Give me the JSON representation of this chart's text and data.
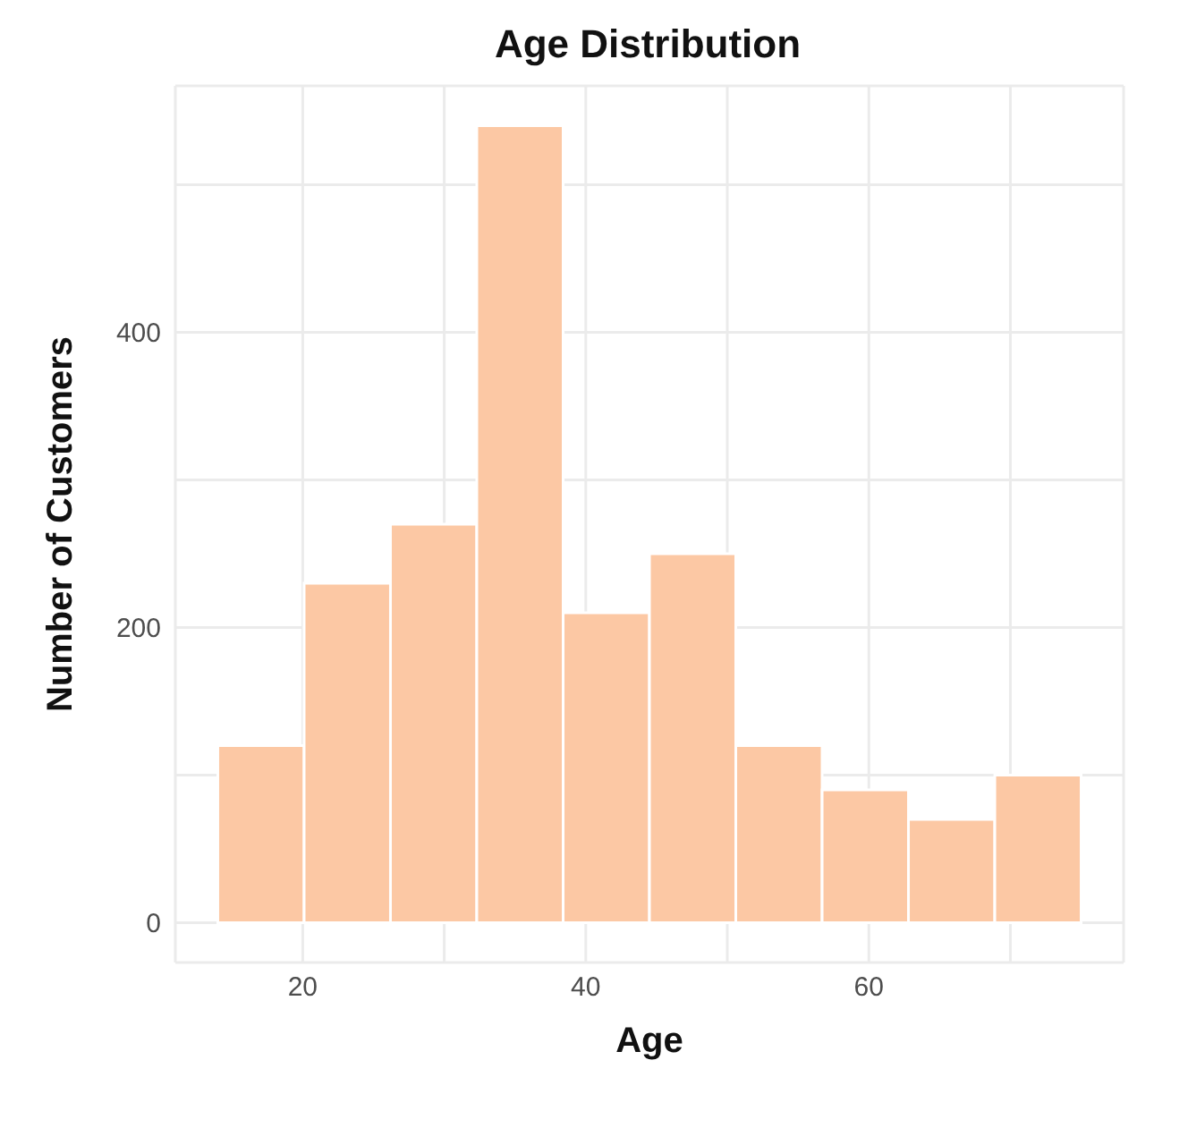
{
  "chart_data": {
    "type": "histogram",
    "title": "Age Distribution",
    "xlabel": "Age",
    "ylabel": "Number of Customers",
    "bins": [
      14,
      20.1,
      26.2,
      32.3,
      38.4,
      44.5,
      50.6,
      56.7,
      62.8,
      68.9,
      75
    ],
    "values": [
      120,
      230,
      270,
      540,
      210,
      250,
      120,
      90,
      70,
      100
    ],
    "color": "#fcc8a4",
    "xlim": [
      11,
      78
    ],
    "xticks": [
      20,
      {
        "value": 30,
        "label": null
      },
      40,
      {
        "value": 50,
        "label": null
      },
      60,
      {
        "value": 70,
        "label": null
      }
    ],
    "ylim": [
      -27,
      567
    ],
    "yticks": [
      0,
      {
        "value": 100,
        "label": null
      },
      200,
      {
        "value": 300,
        "label": null
      },
      400,
      {
        "value": 500,
        "label": null
      }
    ],
    "grid": true
  }
}
